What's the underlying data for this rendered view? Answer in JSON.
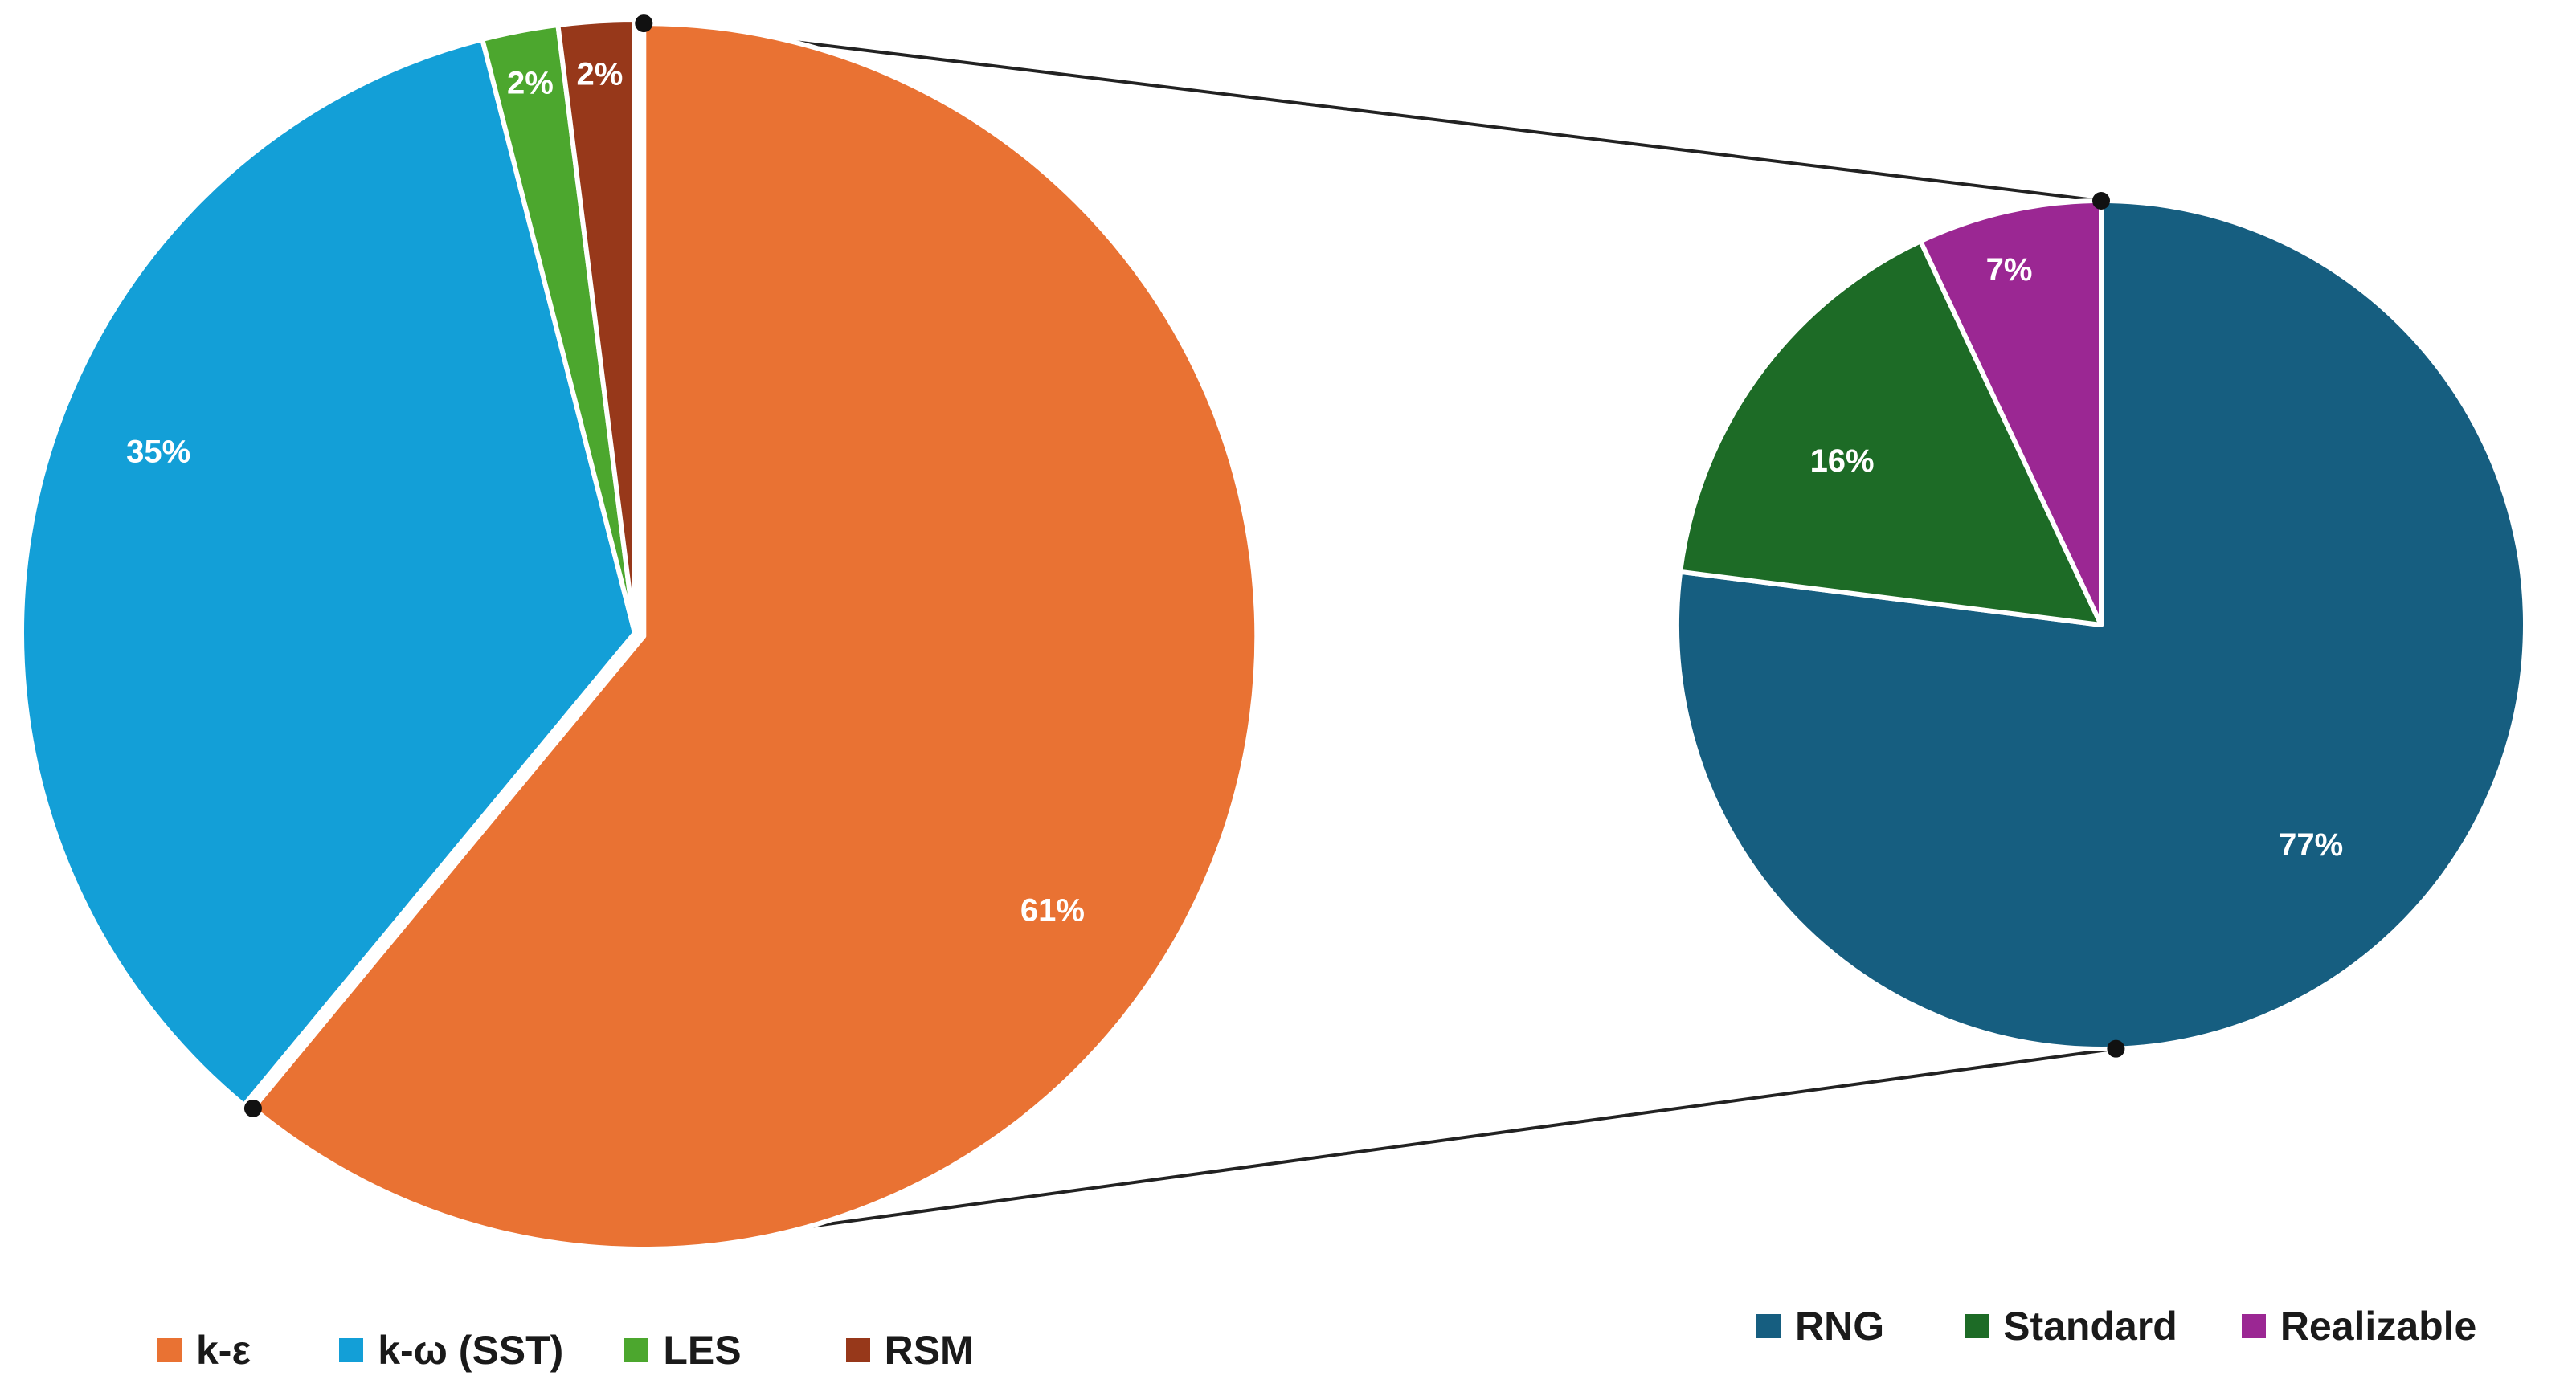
{
  "chart_data": [
    {
      "type": "pie",
      "categories": [
        "k-ε",
        "k-ω (SST)",
        "LES",
        "RSM"
      ],
      "values": [
        61,
        35,
        2,
        2
      ],
      "labels": [
        "61%",
        "35%",
        "2%",
        "2%"
      ],
      "colors": [
        "#e97233",
        "#139fd7",
        "#4ca72e",
        "#97381a"
      ],
      "exploded": "k-ε",
      "legend_position": "bottom-left"
    },
    {
      "type": "pie",
      "categories": [
        "RNG",
        "Standard",
        "Realizable"
      ],
      "values": [
        77,
        16,
        7
      ],
      "labels": [
        "77%",
        "16%",
        "7%"
      ],
      "colors": [
        "#165e80",
        "#1d6b26",
        "#9b2793"
      ],
      "breakdown_of": "k-ε",
      "legend_position": "bottom-right"
    }
  ]
}
